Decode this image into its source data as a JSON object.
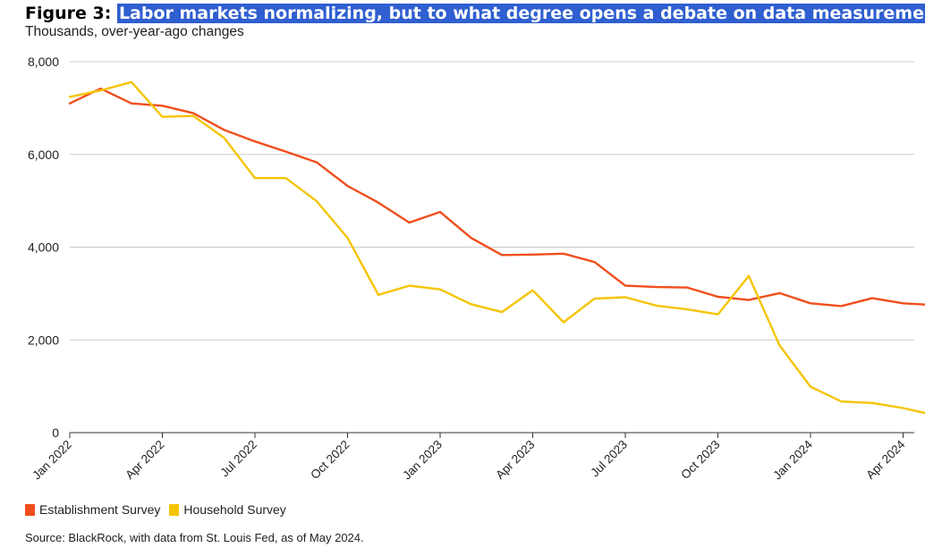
{
  "figure_label": "Figure 3:",
  "title": "Labor markets normalizing, but to what degree opens a debate on data measurements",
  "subtitle": "Thousands, over-year-ago changes",
  "source": "Source: BlackRock, with data from St. Louis Fed, as of May 2024.",
  "colors": {
    "establishment": "#f04e1c",
    "household": "#f5c400",
    "grid": "#cccccc",
    "title_highlight": "#2f5fd0"
  },
  "chart_data": {
    "type": "line",
    "title": "Labor markets normalizing, but to what degree opens a debate on data measurements",
    "ylabel": "Thousands, over-year-ago changes",
    "xlabel": "",
    "ylim": [
      0,
      8000
    ],
    "yticks": [
      0,
      2000,
      4000,
      6000,
      8000
    ],
    "ytick_labels": [
      "0",
      "2,000",
      "4,000",
      "6,000",
      "8,000"
    ],
    "x": [
      "2022-01",
      "2022-02",
      "2022-03",
      "2022-04",
      "2022-05",
      "2022-06",
      "2022-07",
      "2022-08",
      "2022-09",
      "2022-10",
      "2022-11",
      "2022-12",
      "2023-01",
      "2023-02",
      "2023-03",
      "2023-04",
      "2023-05",
      "2023-06",
      "2023-07",
      "2023-08",
      "2023-09",
      "2023-10",
      "2023-11",
      "2023-12",
      "2024-01",
      "2024-02",
      "2024-03",
      "2024-04",
      "2024-05"
    ],
    "xticks": [
      "Jan 2022",
      "Apr 2022",
      "Jul 2022",
      "Oct 2022",
      "Jan 2023",
      "Apr 2023",
      "Jul 2023",
      "Oct 2023",
      "Jan 2024",
      "Apr 2024"
    ],
    "xtick_index": [
      0,
      3,
      6,
      9,
      12,
      15,
      18,
      21,
      24,
      27
    ],
    "grid": true,
    "legend_position": "bottom-left",
    "series": [
      {
        "name": "Establishment Survey",
        "color": "#f04e1c",
        "values": [
          7100,
          7420,
          7100,
          7050,
          6890,
          6530,
          6280,
          6060,
          5830,
          5320,
          4960,
          4530,
          4760,
          4200,
          3830,
          3840,
          3860,
          3680,
          3170,
          3140,
          3130,
          2930,
          2860,
          3010,
          2790,
          2730,
          2900,
          2790,
          2750
        ]
      },
      {
        "name": "Household Survey",
        "color": "#f5c400",
        "values": [
          7240,
          7380,
          7560,
          6810,
          6830,
          6360,
          5490,
          5490,
          4990,
          4200,
          2970,
          3170,
          3090,
          2770,
          2600,
          3070,
          2380,
          2890,
          2920,
          2740,
          2660,
          2550,
          3380,
          1880,
          990,
          670,
          640,
          530,
          380
        ]
      }
    ]
  }
}
